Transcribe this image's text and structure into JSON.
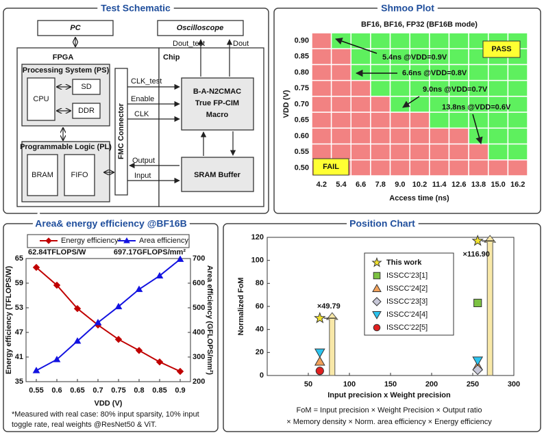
{
  "schematic": {
    "title": "Test Schematic",
    "pc": "PC",
    "fpga": "FPGA",
    "ps": "Processing System (PS)",
    "cpu": "CPU",
    "sd": "SD",
    "ddr": "DDR",
    "pl": "Programmable Logic (PL)",
    "bram": "BRAM",
    "fifo": "FIFO",
    "fmc": "FMC Connector",
    "oscilloscope": "Oscilloscope",
    "chip": "Chip",
    "dout_test": "Dout_test",
    "dout": "Dout",
    "clk_test": "CLK_test",
    "enable": "Enable",
    "clk": "CLK",
    "output": "Output",
    "input": "Input",
    "macro": [
      "B-A-N2CMAC",
      "True FP-CIM",
      "Macro"
    ],
    "sram": "SRAM Buffer"
  },
  "chart_data": [
    {
      "type": "heatmap",
      "title": "Shmoo Plot",
      "subtitle": "BF16, BF16, FP32 (BF16B mode)",
      "xlabel": "Access time (ns)",
      "ylabel": "VDD (V)",
      "x_categories": [
        "4.2",
        "5.4",
        "6.6",
        "7.8",
        "9.0",
        "10.2",
        "11.4",
        "12.6",
        "13.8",
        "15.0",
        "16.2"
      ],
      "y_categories": [
        "0.90",
        "0.85",
        "0.80",
        "0.75",
        "0.70",
        "0.65",
        "0.60",
        "0.55",
        "0.50"
      ],
      "values": [
        [
          0,
          1,
          1,
          1,
          1,
          1,
          1,
          1,
          1,
          1,
          1
        ],
        [
          0,
          0,
          1,
          1,
          1,
          1,
          1,
          1,
          1,
          1,
          1
        ],
        [
          0,
          0,
          1,
          1,
          1,
          1,
          1,
          1,
          1,
          1,
          1
        ],
        [
          0,
          0,
          0,
          1,
          1,
          1,
          1,
          1,
          1,
          1,
          1
        ],
        [
          0,
          0,
          0,
          0,
          1,
          1,
          1,
          1,
          1,
          1,
          1
        ],
        [
          0,
          0,
          0,
          0,
          0,
          0,
          1,
          1,
          1,
          1,
          1
        ],
        [
          0,
          0,
          0,
          0,
          0,
          0,
          0,
          0,
          1,
          1,
          1
        ],
        [
          0,
          0,
          0,
          0,
          0,
          0,
          0,
          0,
          0,
          1,
          1
        ],
        [
          0,
          0,
          0,
          0,
          0,
          0,
          0,
          0,
          0,
          0,
          0
        ]
      ],
      "pass_label": "PASS",
      "fail_label": "FAIL",
      "pass_color": "#5ef05e",
      "fail_color": "#f28282",
      "annotations": [
        "5.4ns @VDD=0.9V",
        "6.6ns @VDD=0.8V",
        "9.0ns @VDD=0.7V",
        "13.8ns @VDD=0.6V"
      ]
    },
    {
      "type": "line",
      "title": "Area& energy efficiency @BF16B",
      "xlabel": "VDD (V)",
      "ylabel": "Energy efficiency (TFLOPS/W)",
      "y2label": "Area efficiency (GFLOPS/mm²)",
      "x": [
        0.55,
        0.6,
        0.65,
        0.7,
        0.75,
        0.8,
        0.85,
        0.9
      ],
      "xlim": [
        0.525,
        0.925
      ],
      "xticks": [
        0.55,
        0.6,
        0.65,
        0.7,
        0.75,
        0.8,
        0.85,
        0.9
      ],
      "ylim": [
        35,
        65
      ],
      "yticks": [
        35,
        41,
        47,
        53,
        59,
        65
      ],
      "y2lim": [
        200,
        700
      ],
      "y2ticks": [
        200,
        300,
        400,
        500,
        600,
        700
      ],
      "series": [
        {
          "name": "Energy efficiency*",
          "color": "#c00000",
          "marker": "diamond",
          "values": [
            62.84,
            58.5,
            52.8,
            48.8,
            45.3,
            42.6,
            39.8,
            37.5
          ],
          "value_labels": [
            "62.84TFLOPS/W",
            null,
            null,
            null,
            null,
            null,
            null,
            null
          ]
        },
        {
          "name": "Area efficiency",
          "color": "#1212e0",
          "marker": "triangle",
          "axis": "y2",
          "values": [
            245,
            290,
            365,
            440,
            505,
            575,
            630,
            697.17
          ],
          "value_labels": [
            null,
            null,
            null,
            null,
            null,
            null,
            null,
            "697.17GFLOPS/mm²"
          ]
        }
      ],
      "legend": "top",
      "footnote": [
        "*Measured with real case: 80% input sparsity, 10% input",
        "toggle rate, real weights @ResNet50 & ViT."
      ]
    },
    {
      "type": "scatter",
      "title": "Position Chart",
      "xlabel": "Input precision x Weight precision",
      "ylabel": "Normalized FoM",
      "xlim": [
        0,
        300
      ],
      "xticks": [
        50,
        100,
        150,
        200,
        250,
        300
      ],
      "ylim": [
        0,
        120
      ],
      "yticks": [
        0,
        20,
        40,
        60,
        80,
        100,
        120
      ],
      "series": [
        {
          "name": "This work",
          "color": "#f2e22e",
          "marker": "star",
          "x": [
            64,
            256
          ],
          "values": [
            49.79,
            116.9
          ],
          "value_labels": [
            "×49.79",
            "×116.90"
          ]
        },
        {
          "name": "ISSCC'23[1]",
          "color": "#7cc242",
          "marker": "square",
          "x": [
            256
          ],
          "values": [
            63
          ]
        },
        {
          "name": "ISSCC'24[2]",
          "color": "#f2a15a",
          "marker": "triangle",
          "x": [
            64,
            256
          ],
          "values": [
            12,
            8
          ]
        },
        {
          "name": "ISSCC'23[3]",
          "color": "#c8c8d8",
          "marker": "diamond",
          "x": [
            256
          ],
          "values": [
            5
          ]
        },
        {
          "name": "ISSCC'24[4]",
          "color": "#2cc4ef",
          "marker": "triangle-down",
          "x": [
            64,
            256
          ],
          "values": [
            20,
            13
          ]
        },
        {
          "name": "ISSCC'22[5]",
          "color": "#e02020",
          "marker": "circle",
          "x": [
            64
          ],
          "values": [
            4
          ]
        }
      ],
      "legend": "center",
      "footnote": [
        "FoM = Input precision × Weight Precision × Output ratio",
        "× Memory density × Norm. area efficiency × Energy efficiency"
      ]
    }
  ]
}
